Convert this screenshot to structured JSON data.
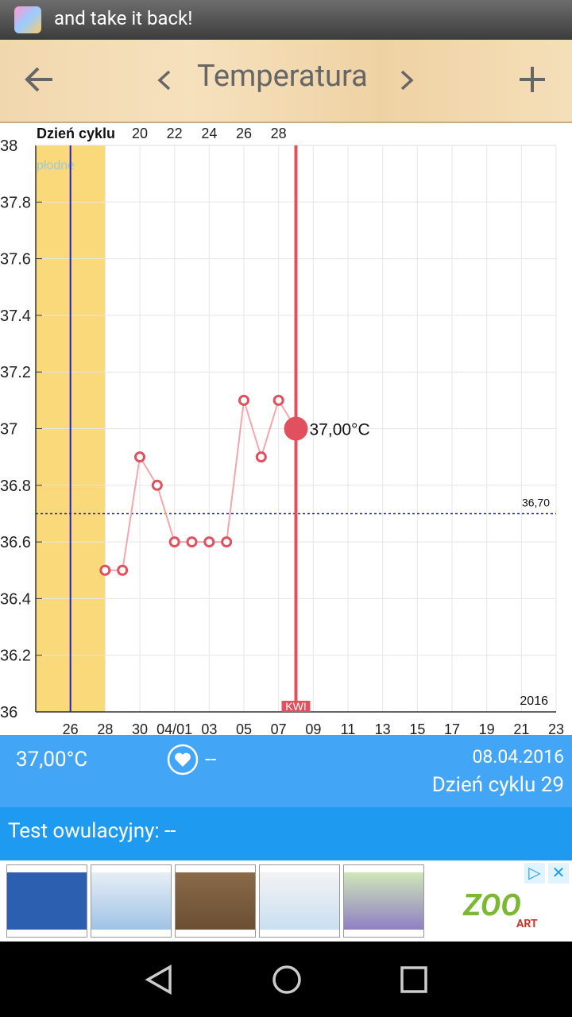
{
  "status_bar": {
    "notification": "and take it back!"
  },
  "toolbar": {
    "title": "Temperatura"
  },
  "chart_data": {
    "type": "line",
    "top_axis_title": "Dzień cyklu",
    "categories": [
      null,
      null,
      "26",
      null,
      "28",
      null,
      "30",
      null,
      "04/01",
      null,
      "03",
      null,
      "05",
      null,
      "07",
      null,
      "09",
      null,
      "11",
      null,
      "13",
      null,
      "15",
      null,
      "17",
      null,
      "19",
      null,
      "21",
      null,
      "23"
    ],
    "top_categories": [
      null,
      null,
      null,
      null,
      null,
      null,
      "20",
      null,
      "22",
      null,
      "24",
      null,
      "26",
      null,
      "28",
      null,
      null,
      null,
      null,
      null,
      null,
      null,
      null,
      null,
      null,
      null,
      null,
      null,
      null,
      null,
      null
    ],
    "values": [
      null,
      null,
      null,
      null,
      36.5,
      36.5,
      36.9,
      36.8,
      36.6,
      36.6,
      36.6,
      36.6,
      37.1,
      36.9,
      37.1,
      37.0,
      null,
      null,
      null,
      null,
      null,
      null,
      null,
      null,
      null,
      null,
      null,
      null,
      null,
      null,
      null
    ],
    "value_labels": [
      null,
      null,
      null,
      null,
      null,
      null,
      null,
      null,
      null,
      null,
      null,
      null,
      null,
      null,
      null,
      "37,00°C",
      null,
      null,
      null,
      null,
      null,
      null,
      null,
      null,
      null,
      null,
      null,
      null,
      null,
      null,
      null
    ],
    "color": "#e0505e",
    "line_color": "#f4a6ac",
    "ylim": [
      36,
      38
    ],
    "yticks": [
      36,
      36.2,
      36.4,
      36.6,
      36.8,
      37,
      37.2,
      37.4,
      37.6,
      37.8,
      38
    ],
    "grid": true,
    "fertile_label": "płodne",
    "average_line": {
      "value": 36.7,
      "label": "36,70"
    },
    "month_label": "KWI",
    "year_label": "2016"
  },
  "info": {
    "temperature": "37,00°C",
    "heart": "--",
    "date": "08.04.2016",
    "cycle_day": "Dzień cyklu 29",
    "ovulation_test": "Test owulacyjny: --"
  },
  "ad": {
    "brand": "ZOO",
    "brand_sub": "ART"
  }
}
